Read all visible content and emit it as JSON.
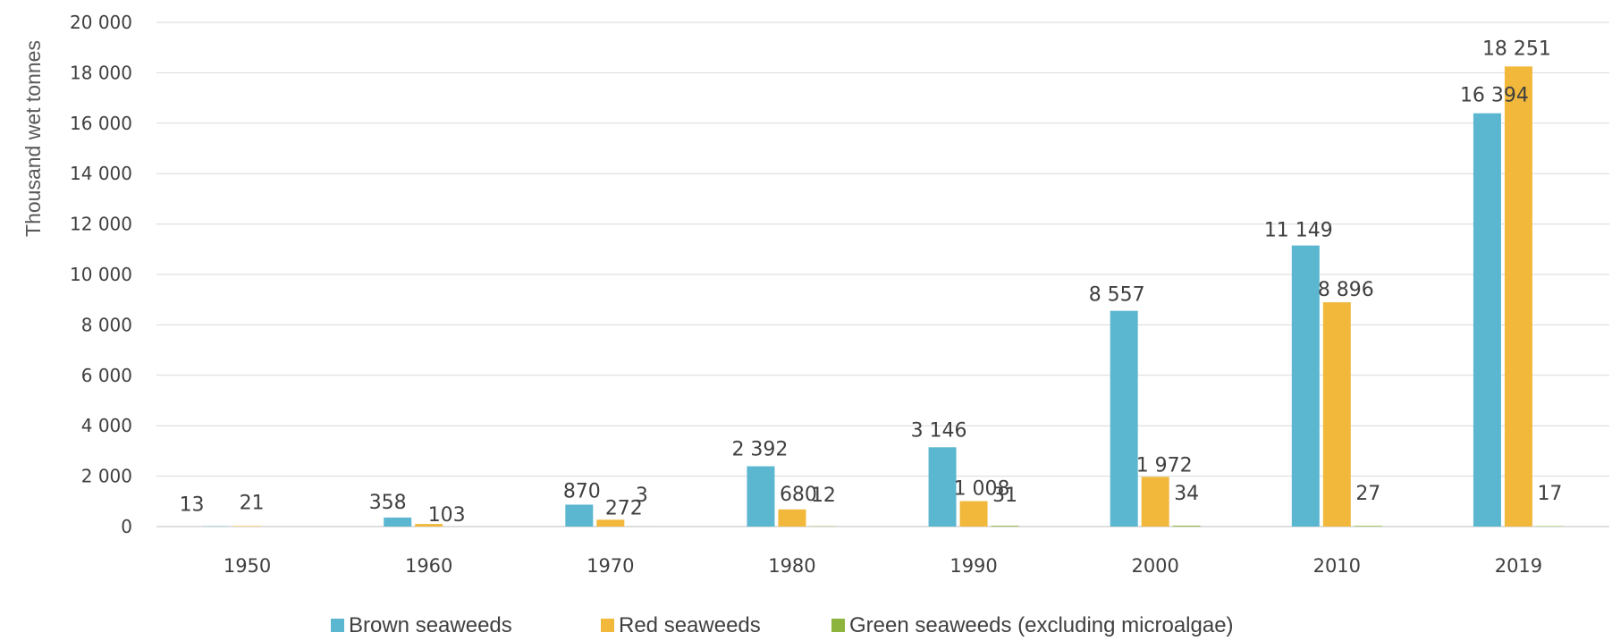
{
  "chart_data": {
    "type": "bar",
    "title": "",
    "xlabel": "",
    "ylabel": "Thousand wet tonnes",
    "ylim": [
      0,
      20000
    ],
    "yticks": [
      0,
      2000,
      4000,
      6000,
      8000,
      10000,
      12000,
      14000,
      16000,
      18000,
      20000
    ],
    "ytick_labels": [
      "0",
      "2 000",
      "4 000",
      "6 000",
      "8 000",
      "10 000",
      "12 000",
      "14 000",
      "16 000",
      "18 000",
      "20 000"
    ],
    "grid": true,
    "legend_position": "bottom",
    "categories": [
      "1950",
      "1960",
      "1970",
      "1980",
      "1990",
      "2000",
      "2010",
      "2019"
    ],
    "series": [
      {
        "name": "Brown seaweeds",
        "color": "#5bb7d0",
        "values": [
          13,
          358,
          870,
          2392,
          3146,
          8557,
          11149,
          16394
        ],
        "labels": [
          "13",
          "358",
          "870",
          "2 392",
          "3 146",
          "8 557",
          "11 149",
          "16 394"
        ]
      },
      {
        "name": "Red seaweeds",
        "color": "#f1b83c",
        "values": [
          21,
          103,
          272,
          680,
          1008,
          1972,
          8896,
          18251
        ],
        "labels": [
          "21",
          "103",
          "272",
          "680",
          "1 008",
          "1 972",
          "8 896",
          "18 251"
        ]
      },
      {
        "name": "Green seaweeds (excluding microalgae)",
        "color": "#8db43c",
        "values": [
          null,
          null,
          3,
          12,
          31,
          34,
          27,
          17
        ],
        "labels": [
          null,
          null,
          "3",
          "12",
          "31",
          "34",
          "27",
          "17"
        ]
      }
    ]
  }
}
